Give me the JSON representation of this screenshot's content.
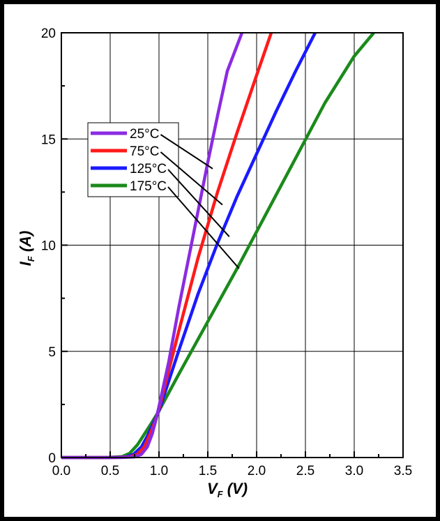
{
  "chart_data": {
    "type": "line",
    "xlabel": {
      "main": "V",
      "sub": "F",
      "unit": " (V)"
    },
    "ylabel": {
      "main": "I",
      "sub": "F",
      "unit": " (A)"
    },
    "xlim": [
      0,
      3.5
    ],
    "ylim": [
      0,
      20
    ],
    "xticks": [
      "0.0",
      "0.5",
      "1.0",
      "1.5",
      "2.0",
      "2.5",
      "3.0",
      "3.5"
    ],
    "yticks": [
      "0",
      "5",
      "10",
      "15",
      "20"
    ],
    "grid": true,
    "legend_position": "upper-left",
    "series": [
      {
        "name": "25°C",
        "color": "#8B2BE2",
        "points": [
          [
            0,
            0
          ],
          [
            0.6,
            0
          ],
          [
            0.75,
            0.03
          ],
          [
            0.82,
            0.15
          ],
          [
            0.88,
            0.5
          ],
          [
            0.93,
            1.1
          ],
          [
            0.97,
            1.8
          ],
          [
            1.0,
            2.4
          ],
          [
            1.1,
            4.5
          ],
          [
            1.2,
            7.0
          ],
          [
            1.3,
            9.3
          ],
          [
            1.4,
            11.6
          ],
          [
            1.5,
            13.9
          ],
          [
            1.6,
            16.1
          ],
          [
            1.7,
            18.2
          ],
          [
            1.85,
            20
          ]
        ]
      },
      {
        "name": "75°C",
        "color": "#FF1A1A",
        "points": [
          [
            0,
            0
          ],
          [
            0.55,
            0
          ],
          [
            0.7,
            0.03
          ],
          [
            0.78,
            0.15
          ],
          [
            0.85,
            0.5
          ],
          [
            0.91,
            1.1
          ],
          [
            0.96,
            1.7
          ],
          [
            1.0,
            2.3
          ],
          [
            1.1,
            4.1
          ],
          [
            1.2,
            5.9
          ],
          [
            1.4,
            9.4
          ],
          [
            1.6,
            12.5
          ],
          [
            1.8,
            15.3
          ],
          [
            2.0,
            18.0
          ],
          [
            2.15,
            20
          ]
        ]
      },
      {
        "name": "125°C",
        "color": "#1A1AFF",
        "points": [
          [
            0,
            0
          ],
          [
            0.5,
            0
          ],
          [
            0.66,
            0.03
          ],
          [
            0.74,
            0.15
          ],
          [
            0.82,
            0.5
          ],
          [
            0.88,
            1.0
          ],
          [
            0.94,
            1.6
          ],
          [
            1.0,
            2.2
          ],
          [
            1.2,
            5.0
          ],
          [
            1.4,
            7.7
          ],
          [
            1.6,
            10.1
          ],
          [
            1.8,
            12.3
          ],
          [
            2.0,
            14.3
          ],
          [
            2.2,
            16.3
          ],
          [
            2.4,
            18.2
          ],
          [
            2.6,
            20
          ]
        ]
      },
      {
        "name": "175°C",
        "color": "#1B8A1B",
        "points": [
          [
            0,
            0
          ],
          [
            0.45,
            0
          ],
          [
            0.62,
            0.04
          ],
          [
            0.7,
            0.2
          ],
          [
            0.78,
            0.6
          ],
          [
            0.85,
            1.1
          ],
          [
            0.92,
            1.6
          ],
          [
            1.0,
            2.2
          ],
          [
            1.2,
            3.9
          ],
          [
            1.5,
            6.4
          ],
          [
            1.8,
            8.9
          ],
          [
            2.1,
            11.5
          ],
          [
            2.4,
            14.1
          ],
          [
            2.7,
            16.7
          ],
          [
            3.0,
            18.9
          ],
          [
            3.2,
            20
          ]
        ]
      }
    ],
    "annotation_targets": [
      [
        1.55,
        13.6
      ],
      [
        1.65,
        11.9
      ],
      [
        1.72,
        10.4
      ],
      [
        1.82,
        8.9
      ]
    ]
  }
}
